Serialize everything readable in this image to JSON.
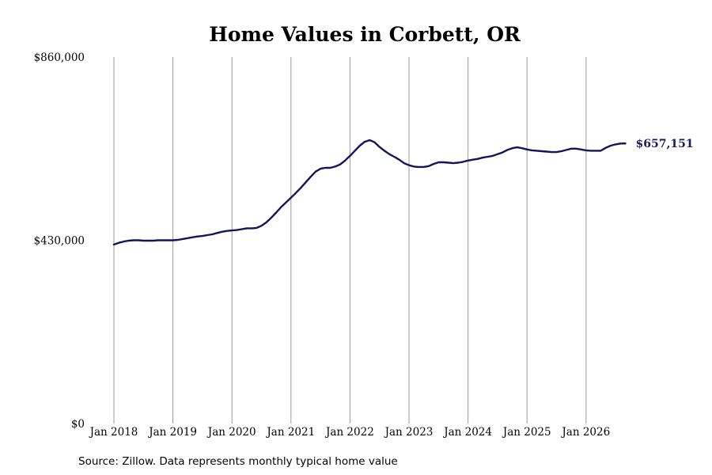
{
  "chart_data": {
    "type": "line",
    "title": "Home Values in Corbett, OR",
    "xlabel": "",
    "ylabel": "",
    "ylim": [
      0,
      860000
    ],
    "yticks": [
      {
        "value": 0,
        "label": "$0"
      },
      {
        "value": 430000,
        "label": "$430,000"
      },
      {
        "value": 860000,
        "label": "$860,000"
      }
    ],
    "xticks": [
      "Jan 2018",
      "Jan 2019",
      "Jan 2020",
      "Jan 2021",
      "Jan 2022",
      "Jan 2023",
      "Jan 2024",
      "Jan 2025",
      "Jan 2026"
    ],
    "grid": "vertical",
    "series": [
      {
        "color": "#14145a",
        "x": [
          "2018-01",
          "2018-02",
          "2018-03",
          "2018-04",
          "2018-05",
          "2018-06",
          "2018-07",
          "2018-08",
          "2018-09",
          "2018-10",
          "2018-11",
          "2018-12",
          "2019-01",
          "2019-02",
          "2019-03",
          "2019-04",
          "2019-05",
          "2019-06",
          "2019-07",
          "2019-08",
          "2019-09",
          "2019-10",
          "2019-11",
          "2019-12",
          "2020-01",
          "2020-02",
          "2020-03",
          "2020-04",
          "2020-05",
          "2020-06",
          "2020-07",
          "2020-08",
          "2020-09",
          "2020-10",
          "2020-11",
          "2020-12",
          "2021-01",
          "2021-02",
          "2021-03",
          "2021-04",
          "2021-05",
          "2021-06",
          "2021-07",
          "2021-08",
          "2021-09",
          "2021-10",
          "2021-11",
          "2021-12",
          "2022-01",
          "2022-02",
          "2022-03",
          "2022-04",
          "2022-05",
          "2022-06",
          "2022-07",
          "2022-08",
          "2022-09",
          "2022-10",
          "2022-11",
          "2022-12",
          "2023-01",
          "2023-02",
          "2023-03",
          "2023-04",
          "2023-05",
          "2023-06",
          "2023-07",
          "2023-08",
          "2023-09",
          "2023-10",
          "2023-11",
          "2023-12",
          "2024-01",
          "2024-02",
          "2024-03",
          "2024-04",
          "2024-05",
          "2024-06",
          "2024-07",
          "2024-08",
          "2024-09",
          "2024-10",
          "2024-11",
          "2024-12",
          "2025-01",
          "2025-02",
          "2025-03",
          "2025-04",
          "2025-05",
          "2025-06",
          "2025-07",
          "2025-08",
          "2025-09",
          "2025-10",
          "2025-11",
          "2025-12",
          "2026-01",
          "2026-02",
          "2026-03",
          "2026-04",
          "2026-05",
          "2026-06",
          "2026-07",
          "2026-08",
          "2026-09"
        ],
        "values": [
          420000,
          424000,
          427000,
          429000,
          430000,
          430000,
          429000,
          429000,
          429000,
          430000,
          430000,
          430000,
          430000,
          431000,
          433000,
          435000,
          437000,
          439000,
          440000,
          442000,
          444000,
          447000,
          450000,
          452000,
          453000,
          454000,
          456000,
          458000,
          458000,
          459000,
          464000,
          472000,
          483000,
          495000,
          508000,
          519000,
          530000,
          541000,
          553000,
          566000,
          579000,
          591000,
          598000,
          600000,
          600000,
          603000,
          608000,
          617000,
          628000,
          640000,
          652000,
          661000,
          665000,
          660000,
          649000,
          640000,
          632000,
          626000,
          619000,
          611000,
          606000,
          603000,
          602000,
          602000,
          604000,
          609000,
          613000,
          613000,
          612000,
          611000,
          612000,
          614000,
          617000,
          619000,
          621000,
          624000,
          626000,
          628000,
          632000,
          636000,
          642000,
          646000,
          648000,
          646000,
          643000,
          641000,
          640000,
          639000,
          638000,
          637000,
          637000,
          639000,
          642000,
          645000,
          645000,
          643000,
          641000,
          640000,
          640000,
          640000,
          647000,
          652000,
          655000,
          657000,
          657151
        ],
        "end_label": "$657,151"
      }
    ]
  },
  "footer": {
    "source": "Source: Zillow. Data represents monthly typical home value"
  }
}
